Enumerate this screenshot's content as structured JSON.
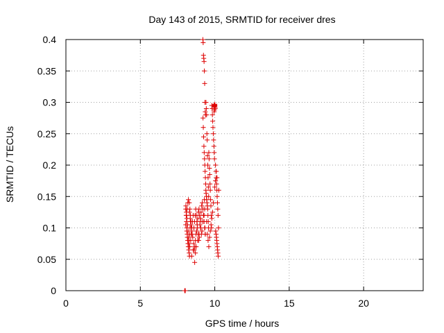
{
  "chart_data": {
    "type": "scatter",
    "title": "Day 143 of 2015, SRMTID for receiver dres",
    "xlabel": "GPS time / hours",
    "ylabel": "SRMTID / TECUs",
    "xlim": [
      0,
      24
    ],
    "ylim": [
      0,
      0.4
    ],
    "xticks": [
      0,
      5,
      10,
      15,
      20
    ],
    "yticks": [
      0,
      0.05,
      0.1,
      0.15,
      0.2,
      0.25,
      0.3,
      0.35,
      0.4
    ],
    "xtick_labels": [
      "0",
      "5",
      "10",
      "15",
      "20"
    ],
    "ytick_labels": [
      "0",
      "0.05",
      "0.1",
      "0.15",
      "0.2",
      "0.25",
      "0.3",
      "0.35",
      "0.4"
    ],
    "grid": true,
    "marker": "+",
    "color": "#dd0000",
    "series": [
      {
        "name": "SRMTID",
        "x": [
          7.98,
          7.99,
          8.0,
          8.01,
          8.02,
          8.05,
          8.08,
          8.1,
          8.12,
          8.15,
          8.18,
          8.2,
          8.22,
          8.25,
          8.28,
          8.3,
          8.06,
          8.09,
          8.13,
          8.17,
          8.21,
          8.24,
          8.27,
          8.31,
          8.34,
          8.37,
          8.1,
          8.14,
          8.19,
          8.23,
          8.29,
          8.33,
          8.36,
          8.4,
          8.44,
          8.48,
          8.05,
          8.12,
          8.16,
          8.26,
          8.32,
          8.38,
          8.42,
          8.46,
          8.5,
          8.55,
          8.3,
          8.35,
          8.4,
          8.45,
          8.52,
          8.58,
          8.62,
          8.66,
          8.7,
          8.74,
          8.6,
          8.64,
          8.68,
          8.72,
          8.76,
          8.8,
          8.84,
          8.88,
          8.92,
          8.96,
          8.78,
          8.82,
          8.86,
          8.9,
          8.94,
          8.98,
          9.02,
          9.06,
          9.1,
          9.14,
          9.0,
          9.04,
          9.08,
          9.12,
          9.16,
          9.2,
          9.24,
          9.28,
          9.32,
          9.36,
          8.65,
          8.7,
          8.75,
          8.85,
          8.95,
          9.05,
          9.15,
          9.25,
          8.55,
          8.45,
          9.2,
          9.22,
          9.24,
          9.26,
          9.28,
          9.3,
          9.32,
          9.34,
          9.36,
          9.38,
          9.21,
          9.23,
          9.25,
          9.27,
          9.29,
          9.31,
          9.33,
          9.35,
          9.37,
          9.39,
          9.4,
          9.42,
          9.44,
          9.46,
          9.48,
          9.5,
          9.52,
          9.54,
          9.56,
          9.58,
          9.41,
          9.43,
          9.45,
          9.47,
          9.49,
          9.51,
          9.53,
          9.55,
          9.57,
          9.59,
          9.6,
          9.62,
          9.64,
          9.66,
          9.68,
          9.7,
          9.72,
          9.74,
          9.76,
          9.78,
          9.8,
          9.82,
          9.84,
          9.86,
          9.88,
          9.9,
          9.92,
          9.94,
          9.96,
          9.98,
          9.95,
          9.97,
          9.99,
          10.0,
          10.01,
          10.02,
          10.03,
          10.0,
          9.98,
          9.96,
          10.05,
          10.08,
          10.1,
          10.12,
          10.14,
          10.16,
          10.18,
          10.2,
          10.22,
          10.25,
          10.06,
          10.09,
          10.11,
          10.13,
          10.15,
          10.17,
          10.19,
          10.21,
          10.23,
          10.27,
          9.3,
          9.32,
          9.28,
          9.26,
          9.34,
          9.36,
          9.45,
          9.5,
          9.55,
          9.6,
          9.65,
          9.7,
          9.75,
          9.8,
          9.85,
          9.9,
          10.0,
          10.05,
          10.1,
          10.15
        ],
        "y": [
          0.0,
          0.0,
          0.0,
          0.0,
          0.0,
          0.13,
          0.12,
          0.11,
          0.1,
          0.09,
          0.08,
          0.075,
          0.07,
          0.065,
          0.06,
          0.055,
          0.135,
          0.125,
          0.115,
          0.105,
          0.095,
          0.085,
          0.08,
          0.09,
          0.1,
          0.11,
          0.12,
          0.13,
          0.14,
          0.145,
          0.14,
          0.13,
          0.12,
          0.11,
          0.1,
          0.09,
          0.105,
          0.095,
          0.085,
          0.075,
          0.07,
          0.08,
          0.09,
          0.1,
          0.11,
          0.12,
          0.125,
          0.115,
          0.105,
          0.095,
          0.085,
          0.075,
          0.065,
          0.07,
          0.08,
          0.09,
          0.1,
          0.11,
          0.12,
          0.13,
          0.12,
          0.11,
          0.1,
          0.09,
          0.08,
          0.085,
          0.095,
          0.105,
          0.115,
          0.125,
          0.13,
          0.12,
          0.11,
          0.1,
          0.09,
          0.095,
          0.105,
          0.115,
          0.125,
          0.135,
          0.14,
          0.13,
          0.12,
          0.11,
          0.1,
          0.09,
          0.045,
          0.06,
          0.07,
          0.08,
          0.09,
          0.1,
          0.11,
          0.12,
          0.065,
          0.055,
          0.4,
          0.395,
          0.375,
          0.37,
          0.365,
          0.35,
          0.33,
          0.3,
          0.285,
          0.28,
          0.275,
          0.26,
          0.245,
          0.23,
          0.22,
          0.21,
          0.2,
          0.19,
          0.18,
          0.17,
          0.16,
          0.155,
          0.15,
          0.145,
          0.14,
          0.135,
          0.13,
          0.12,
          0.11,
          0.1,
          0.3,
          0.29,
          0.28,
          0.25,
          0.24,
          0.215,
          0.2,
          0.18,
          0.165,
          0.15,
          0.22,
          0.21,
          0.195,
          0.185,
          0.17,
          0.16,
          0.145,
          0.135,
          0.12,
          0.1,
          0.295,
          0.29,
          0.28,
          0.27,
          0.26,
          0.25,
          0.24,
          0.23,
          0.22,
          0.21,
          0.295,
          0.293,
          0.296,
          0.294,
          0.295,
          0.292,
          0.29,
          0.297,
          0.288,
          0.285,
          0.2,
          0.19,
          0.18,
          0.17,
          0.16,
          0.15,
          0.14,
          0.13,
          0.12,
          0.1,
          0.095,
          0.09,
          0.085,
          0.08,
          0.075,
          0.07,
          0.065,
          0.06,
          0.055,
          0.16,
          0.145,
          0.13,
          0.12,
          0.11,
          0.1,
          0.09,
          0.11,
          0.09,
          0.08,
          0.07,
          0.085,
          0.095,
          0.105,
          0.115,
          0.125,
          0.14,
          0.165,
          0.175,
          0.19,
          0.18
        ]
      }
    ]
  }
}
